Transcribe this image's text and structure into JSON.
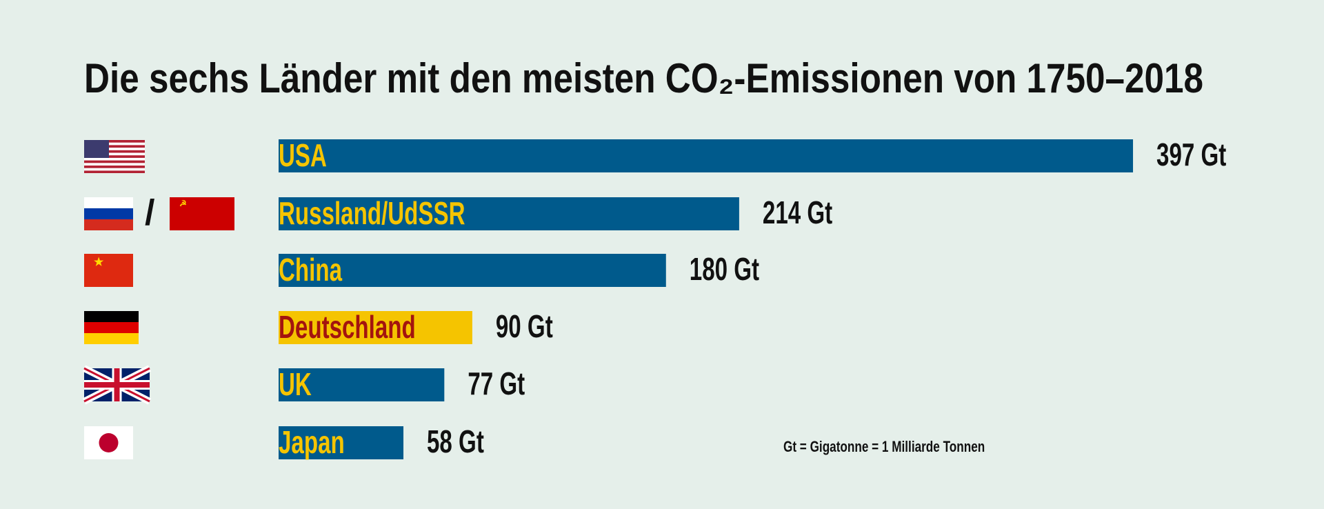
{
  "chart_data": {
    "type": "bar",
    "orientation": "horizontal",
    "title": "Die sechs Länder mit den meisten CO₂-Emissionen von 1750–2018",
    "categories": [
      "USA",
      "Russland/UdSSR",
      "China",
      "Deutschland",
      "UK",
      "Japan"
    ],
    "values": [
      397,
      214,
      180,
      90,
      77,
      58
    ],
    "value_labels": [
      "397 Gt",
      "214 Gt",
      "180 Gt",
      "90 Gt",
      "77 Gt",
      "58 Gt"
    ],
    "colors": [
      "#005a8c",
      "#005a8c",
      "#005a8c",
      "#f5c400",
      "#005a8c",
      "#005a8c"
    ],
    "label_colors": [
      "#f5c400",
      "#f5c400",
      "#f5c400",
      "#a3140f",
      "#f5c400",
      "#f5c400"
    ],
    "note": "Gt = Gigatonne = 1 Milliarde Tonnen"
  }
}
